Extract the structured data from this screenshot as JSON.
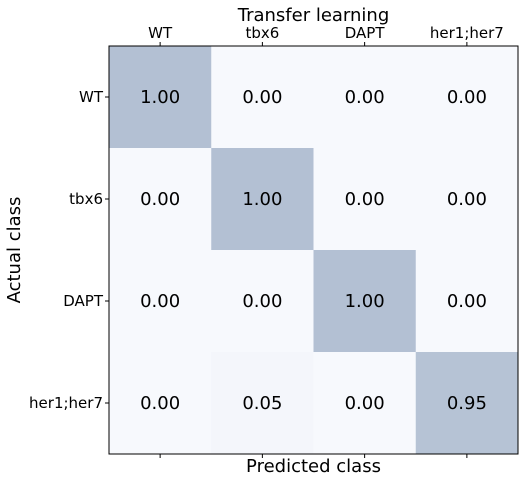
{
  "chart_data": {
    "type": "heatmap",
    "title": "Transfer learning",
    "xlabel": "Predicted class",
    "ylabel": "Actual class",
    "x_categories": [
      "WT",
      "tbx6",
      "DAPT",
      "her1;her7"
    ],
    "y_categories": [
      "WT",
      "tbx6",
      "DAPT",
      "her1;her7"
    ],
    "values": [
      [
        1.0,
        0.0,
        0.0,
        0.0
      ],
      [
        0.0,
        1.0,
        0.0,
        0.0
      ],
      [
        0.0,
        0.0,
        1.0,
        0.0
      ],
      [
        0.0,
        0.05,
        0.0,
        0.95
      ]
    ],
    "value_labels": [
      [
        "1.00",
        "0.00",
        "0.00",
        "0.00"
      ],
      [
        "0.00",
        "1.00",
        "0.00",
        "0.00"
      ],
      [
        "0.00",
        "0.00",
        "1.00",
        "0.00"
      ],
      [
        "0.00",
        "0.05",
        "0.00",
        "0.95"
      ]
    ],
    "value_range": [
      0,
      1
    ],
    "x_tick_position": "top",
    "grid": false,
    "colors": {
      "low": "#f7f9fd",
      "high": "#b3c0d3"
    }
  }
}
